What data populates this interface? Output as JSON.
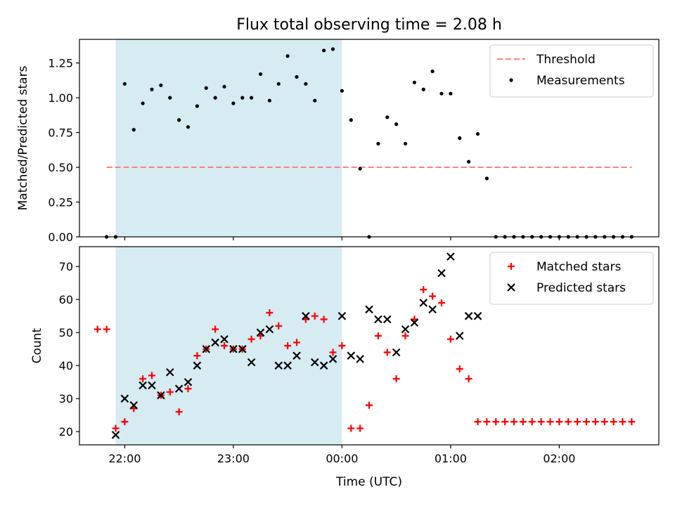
{
  "chart_data": [
    {
      "type": "scatter",
      "title": "Flux total observing time = 2.08 h",
      "ylabel": "Matched/Predicted stars",
      "xlim": [
        "21:35",
        "02:55"
      ],
      "ylim": [
        0,
        1.42
      ],
      "yticks": [
        "0.00",
        "0.25",
        "0.50",
        "0.75",
        "1.00",
        "1.25"
      ],
      "shaded_interval": [
        "21:55",
        "00:00"
      ],
      "legend_position": "upper-right",
      "threshold": {
        "name": "Threshold",
        "value": 0.5,
        "x_range": [
          "21:50",
          "02:40"
        ],
        "color": "#ff7f7f"
      },
      "series": [
        {
          "name": "Measurements",
          "marker": "dot",
          "color": "#000000",
          "x": [
            "21:50",
            "21:55",
            "22:00",
            "22:05",
            "22:10",
            "22:15",
            "22:20",
            "22:25",
            "22:30",
            "22:35",
            "22:40",
            "22:45",
            "22:50",
            "22:55",
            "23:00",
            "23:05",
            "23:10",
            "23:15",
            "23:20",
            "23:25",
            "23:30",
            "23:35",
            "23:40",
            "23:45",
            "23:50",
            "23:55",
            "00:00",
            "00:05",
            "00:10",
            "00:15",
            "00:20",
            "00:25",
            "00:30",
            "00:35",
            "00:40",
            "00:45",
            "00:50",
            "00:55",
            "01:00",
            "01:05",
            "01:10",
            "01:15",
            "01:20",
            "01:25",
            "01:30",
            "01:35",
            "01:40",
            "01:45",
            "01:50",
            "01:55",
            "02:00",
            "02:05",
            "02:10",
            "02:15",
            "02:20",
            "02:25",
            "02:30",
            "02:35",
            "02:40"
          ],
          "y": [
            0,
            0,
            1.1,
            0.77,
            0.96,
            1.06,
            1.09,
            1.0,
            0.84,
            0.79,
            0.94,
            1.07,
            1.0,
            1.08,
            0.96,
            1.0,
            1.0,
            1.17,
            0.98,
            1.1,
            1.3,
            1.15,
            1.1,
            0.98,
            1.34,
            1.35,
            1.05,
            0.84,
            0.49,
            0,
            0.67,
            0.86,
            0.81,
            0.67,
            1.11,
            1.06,
            1.19,
            1.03,
            1.03,
            0.71,
            0.54,
            0.74,
            0.42,
            0,
            0,
            0,
            0,
            0,
            0,
            0,
            0,
            0,
            0,
            0,
            0,
            0,
            0,
            0,
            0
          ]
        }
      ]
    },
    {
      "type": "scatter",
      "xlabel": "Time (UTC)",
      "ylabel": "Count",
      "xlim": [
        "21:35",
        "02:55"
      ],
      "ylim": [
        16,
        76
      ],
      "xticks": [
        "22:00",
        "23:00",
        "00:00",
        "01:00",
        "02:00"
      ],
      "yticks": [
        20,
        30,
        40,
        50,
        60,
        70
      ],
      "shaded_interval": [
        "21:55",
        "00:00"
      ],
      "legend_position": "upper-right",
      "series": [
        {
          "name": "Matched stars",
          "marker": "plus",
          "color": "#ff0000",
          "x": [
            "21:45",
            "21:50",
            "21:55",
            "22:00",
            "22:05",
            "22:10",
            "22:15",
            "22:20",
            "22:25",
            "22:30",
            "22:35",
            "22:40",
            "22:45",
            "22:50",
            "22:55",
            "23:00",
            "23:05",
            "23:10",
            "23:15",
            "23:20",
            "23:25",
            "23:30",
            "23:35",
            "23:40",
            "23:45",
            "23:50",
            "23:55",
            "00:00",
            "00:05",
            "00:10",
            "00:15",
            "00:20",
            "00:25",
            "00:30",
            "00:35",
            "00:40",
            "00:45",
            "00:50",
            "00:55",
            "01:00",
            "01:05",
            "01:10",
            "01:15",
            "01:20",
            "01:25",
            "01:30",
            "01:35",
            "01:40",
            "01:45",
            "01:50",
            "01:55",
            "02:00",
            "02:05",
            "02:10",
            "02:15",
            "02:20",
            "02:25",
            "02:30",
            "02:35",
            "02:40"
          ],
          "y": [
            51,
            51,
            21,
            23,
            27,
            36,
            37,
            31,
            32,
            26,
            33,
            43,
            45,
            51,
            46,
            45,
            45,
            48,
            49,
            56,
            52,
            46,
            47,
            54,
            55,
            54,
            44,
            46,
            21,
            21,
            28,
            49,
            44,
            36,
            49,
            54,
            63,
            61,
            59,
            48,
            39,
            36,
            23,
            23,
            23,
            23,
            23,
            23,
            23,
            23,
            23,
            23,
            23,
            23,
            23,
            23,
            23,
            23,
            23,
            23
          ]
        },
        {
          "name": "Predicted stars",
          "marker": "x",
          "color": "#000000",
          "x": [
            "21:55",
            "22:00",
            "22:05",
            "22:10",
            "22:15",
            "22:20",
            "22:25",
            "22:30",
            "22:35",
            "22:40",
            "22:45",
            "22:50",
            "22:55",
            "23:00",
            "23:05",
            "23:10",
            "23:15",
            "23:20",
            "23:25",
            "23:30",
            "23:35",
            "23:40",
            "23:45",
            "23:50",
            "23:55",
            "00:00",
            "00:05",
            "00:10",
            "00:15",
            "00:20",
            "00:25",
            "00:30",
            "00:35",
            "00:40",
            "00:45",
            "00:50",
            "00:55",
            "01:00",
            "01:05",
            "01:10",
            "01:15"
          ],
          "y": [
            19,
            30,
            28,
            34,
            34,
            31,
            38,
            33,
            35,
            40,
            45,
            47,
            48,
            45,
            45,
            41,
            50,
            51,
            40,
            40,
            43,
            55,
            41,
            40,
            42,
            55,
            43,
            42,
            57,
            54,
            54,
            44,
            51,
            53,
            59,
            57,
            68,
            73,
            49,
            55,
            55
          ]
        }
      ]
    }
  ]
}
